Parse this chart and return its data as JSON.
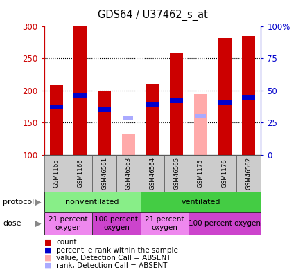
{
  "title": "GDS64 / U37462_s_at",
  "samples": [
    "GSM1165",
    "GSM1166",
    "GSM46561",
    "GSM46563",
    "GSM46564",
    "GSM46565",
    "GSM1175",
    "GSM1176",
    "GSM46562"
  ],
  "count_values": [
    208,
    300,
    200,
    null,
    210,
    258,
    null,
    281,
    285
  ],
  "count_absent": [
    null,
    null,
    null,
    132,
    null,
    null,
    194,
    null,
    null
  ],
  "rank_values": [
    174,
    192,
    170,
    null,
    178,
    184,
    null,
    181,
    189
  ],
  "rank_absent": [
    null,
    null,
    null,
    157,
    null,
    null,
    160,
    null,
    null
  ],
  "ylim": [
    100,
    300
  ],
  "y2lim": [
    0,
    100
  ],
  "yticks": [
    100,
    150,
    200,
    250,
    300
  ],
  "y2ticks": [
    0,
    25,
    50,
    75,
    100
  ],
  "bar_width": 0.55,
  "rank_bar_height": 7,
  "count_color": "#cc0000",
  "rank_color": "#0000cc",
  "count_absent_color": "#ffaaaa",
  "rank_absent_color": "#aaaaff",
  "protocol_groups": [
    {
      "label": "nonventilated",
      "start": 0,
      "end": 4,
      "color": "#88ee88"
    },
    {
      "label": "ventilated",
      "start": 4,
      "end": 9,
      "color": "#44cc44"
    }
  ],
  "dose_groups": [
    {
      "label": "21 percent\noxygen",
      "start": 0,
      "end": 2,
      "color": "#ee88ee"
    },
    {
      "label": "100 percent\noxygen",
      "start": 2,
      "end": 4,
      "color": "#cc44cc"
    },
    {
      "label": "21 percent\noxygen",
      "start": 4,
      "end": 6,
      "color": "#ee88ee"
    },
    {
      "label": "100 percent oxygen",
      "start": 6,
      "end": 9,
      "color": "#cc44cc"
    }
  ],
  "legend_items": [
    {
      "label": "count",
      "color": "#cc0000"
    },
    {
      "label": "percentile rank within the sample",
      "color": "#0000cc"
    },
    {
      "label": "value, Detection Call = ABSENT",
      "color": "#ffaaaa"
    },
    {
      "label": "rank, Detection Call = ABSENT",
      "color": "#aaaaff"
    }
  ],
  "grid_color": "#000000",
  "axis_color_left": "#cc0000",
  "axis_color_right": "#0000cc",
  "bg_color": "#ffffff",
  "plot_bg_color": "#ffffff",
  "label_box_color": "#cccccc",
  "arrow_color": "#888888"
}
